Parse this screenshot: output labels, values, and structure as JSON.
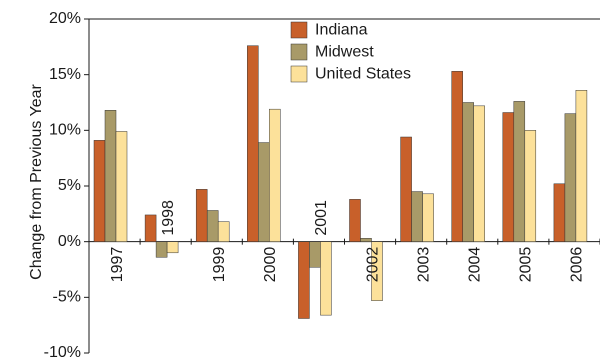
{
  "chart_data": {
    "type": "bar",
    "ylabel": "Change from Previous Year",
    "ylim": [
      -10,
      20
    ],
    "y_ticks": [
      "-10%",
      "-5%",
      "0%",
      "5%",
      "10%",
      "15%",
      "20%"
    ],
    "y_tick_values": [
      -10,
      -5,
      0,
      5,
      10,
      15,
      20
    ],
    "categories": [
      "1997",
      "1998",
      "1999",
      "2000",
      "2001",
      "2002",
      "2003",
      "2004",
      "2005",
      "2006"
    ],
    "series": [
      {
        "name": "Indiana",
        "color": "#c8602a",
        "values": [
          9.1,
          2.4,
          4.7,
          17.6,
          -6.9,
          3.8,
          9.4,
          15.3,
          11.6,
          5.2
        ]
      },
      {
        "name": "Midwest",
        "color": "#a89a68",
        "values": [
          11.8,
          -1.4,
          2.8,
          8.9,
          -2.3,
          0.3,
          4.5,
          12.5,
          12.6,
          11.5
        ]
      },
      {
        "name": "United States",
        "color": "#fce19a",
        "values": [
          9.9,
          -1.0,
          1.8,
          11.9,
          -6.6,
          -5.3,
          4.3,
          12.2,
          10.0,
          13.6
        ]
      }
    ],
    "legend_position": "top-left-inside",
    "grid": false
  }
}
